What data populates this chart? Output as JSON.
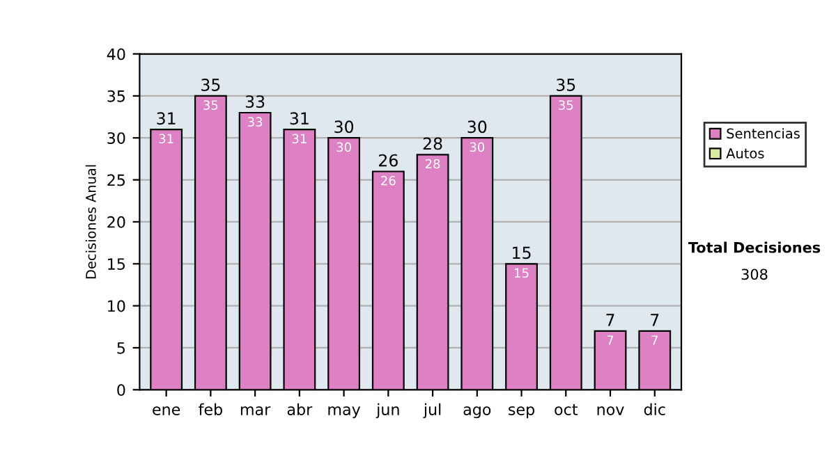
{
  "chart_data": {
    "type": "bar",
    "stacked": true,
    "ylabel": "Decisiones Anual",
    "categories": [
      "ene",
      "feb",
      "mar",
      "abr",
      "may",
      "jun",
      "jul",
      "ago",
      "sep",
      "oct",
      "nov",
      "dic"
    ],
    "series": [
      {
        "name": "Sentencias",
        "color": "#dd80c4",
        "values": [
          31,
          35,
          33,
          31,
          30,
          26,
          28,
          30,
          15,
          35,
          7,
          7
        ],
        "value_labels": [
          "31",
          "35",
          "33",
          "31",
          "30",
          "26",
          "28",
          "30",
          "15",
          "35",
          "7",
          "7"
        ]
      },
      {
        "name": "Autos",
        "color": "#d8eca0",
        "values": [
          null,
          null,
          null,
          null,
          null,
          null,
          null,
          null,
          null,
          null,
          null,
          null
        ]
      }
    ],
    "totals": [
      "31",
      "35",
      "33",
      "31",
      "30",
      "26",
      "28",
      "30",
      "15",
      "35",
      "7",
      "7"
    ],
    "ylim": [
      0,
      40
    ],
    "yticks": [
      0,
      5,
      10,
      15,
      20,
      25,
      30,
      35,
      40
    ],
    "grid": "y",
    "legend": "right",
    "annotations": [
      "Total Decisiones",
      "308"
    ]
  }
}
